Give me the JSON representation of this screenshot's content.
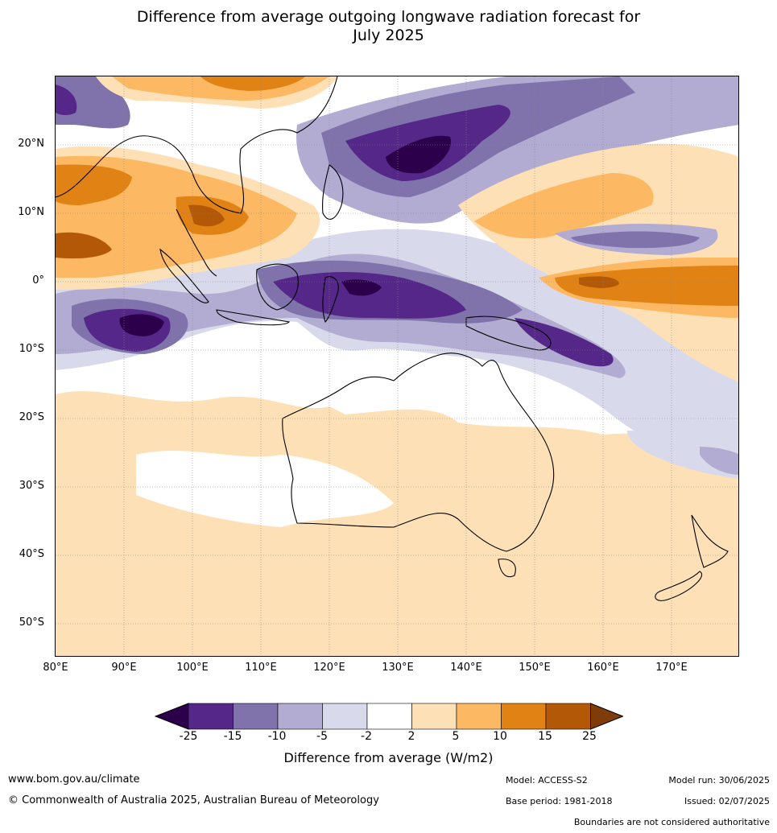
{
  "title_line1": "Difference from average outgoing longwave radiation forecast for",
  "title_line2": "July 2025",
  "lat_labels": [
    "20°N",
    "10°N",
    "0°",
    "10°S",
    "20°S",
    "30°S",
    "40°S",
    "50°S"
  ],
  "lon_labels": [
    "80°E",
    "90°E",
    "100°E",
    "110°E",
    "120°E",
    "130°E",
    "140°E",
    "150°E",
    "160°E",
    "170°E"
  ],
  "legend": {
    "title": "Difference from average (W/m2)",
    "ticks": [
      "-25",
      "-15",
      "-10",
      "-5",
      "-2",
      "2",
      "5",
      "10",
      "15",
      "25"
    ],
    "colors": [
      "#2d004b",
      "#542788",
      "#8073ac",
      "#b2abd2",
      "#d8daeb",
      "#ffffff",
      "#fee0b6",
      "#fdb863",
      "#e08214",
      "#b35806",
      "#7f3b08"
    ]
  },
  "footer": {
    "website": "www.bom.gov.au/climate",
    "copyright": "© Commonwealth of Australia 2025, Australian Bureau of Meteorology",
    "model": "Model: ACCESS-S2",
    "base_period": "Base period: 1981-2018",
    "model_run": "Model run: 30/06/2025",
    "issued": "Issued: 02/07/2025",
    "disclaimer": "Boundaries are not considered authoritative"
  }
}
